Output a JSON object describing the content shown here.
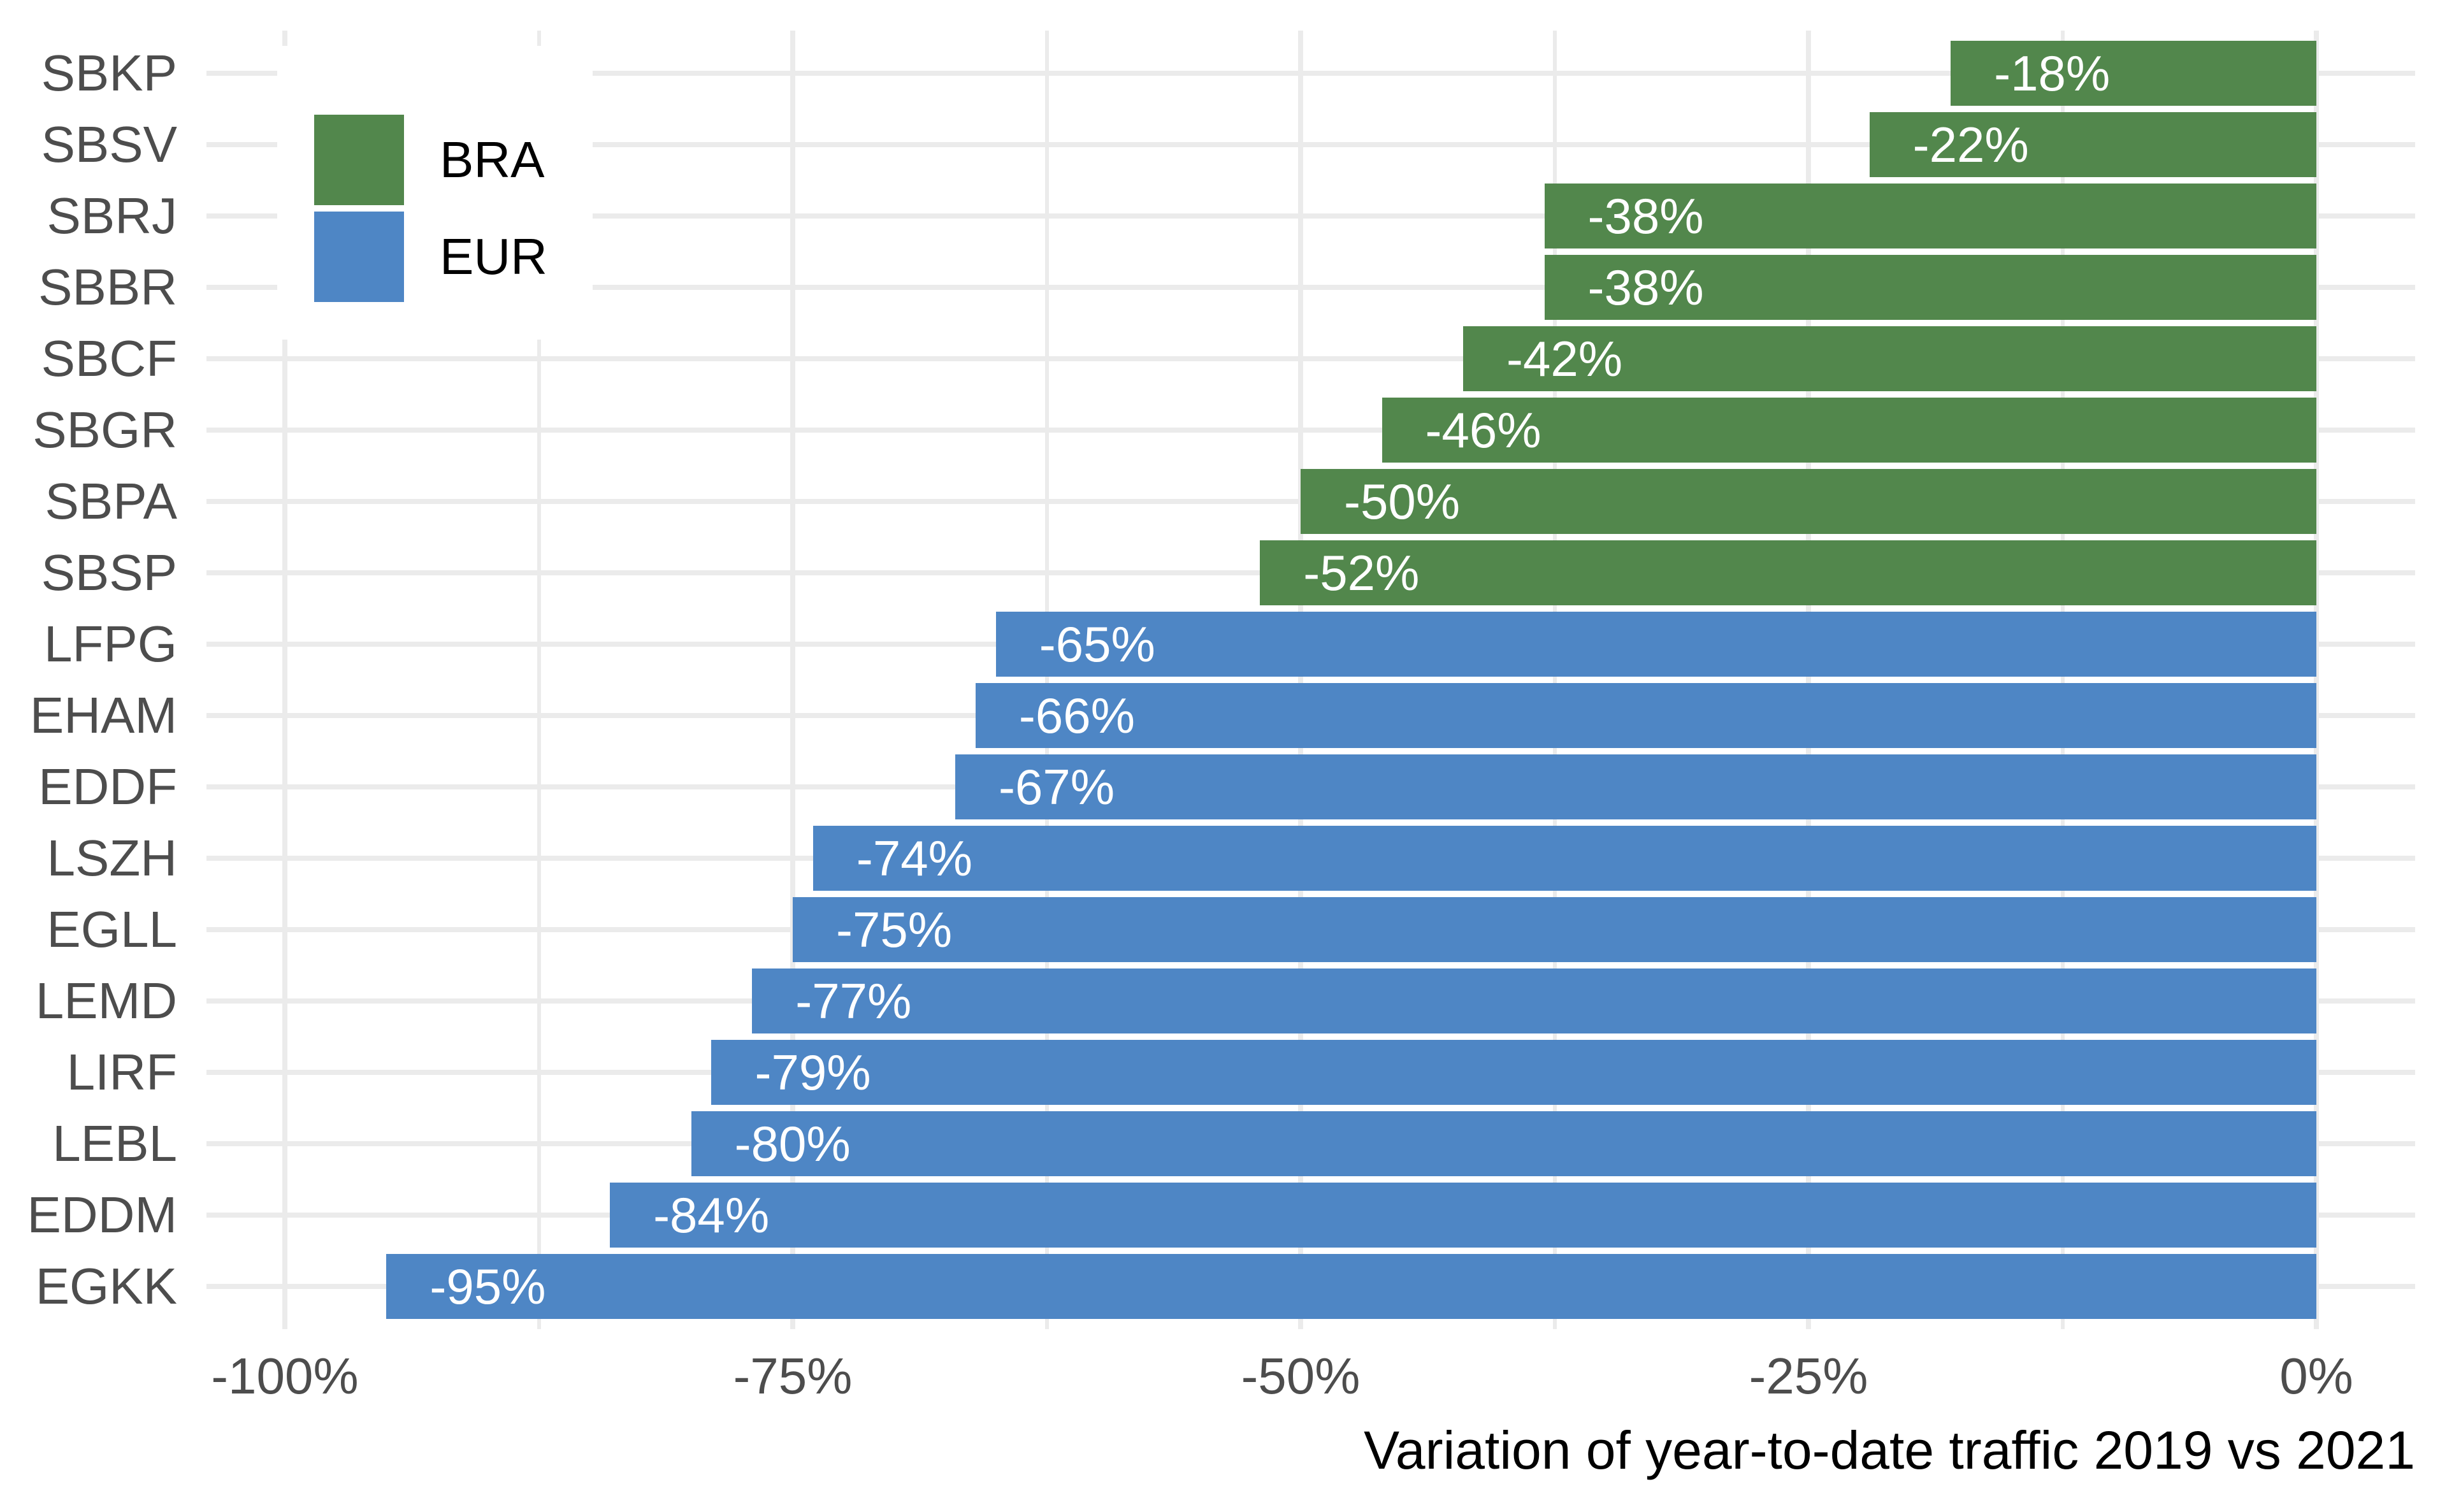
{
  "chart_data": {
    "type": "bar",
    "orientation": "horizontal",
    "title": "",
    "xlabel": "Variation of year-to-date traffic 2019 vs 2021",
    "ylabel": "",
    "x_axis": {
      "ticks": [
        {
          "label": "-100%",
          "value": -100
        },
        {
          "label": "-75%",
          "value": -75
        },
        {
          "label": "-50%",
          "value": -50
        },
        {
          "label": "-25%",
          "value": -25
        },
        {
          "label": "0%",
          "value": 0
        }
      ],
      "xlim": [
        -100,
        0
      ],
      "minor_grid": true,
      "major_grid": true
    },
    "legend": {
      "position": "inside-top-left",
      "entries": [
        {
          "label": "BRA",
          "color": "#52874C"
        },
        {
          "label": "EUR",
          "color": "#4E86C5"
        }
      ]
    },
    "bars": [
      {
        "airport": "SBKP",
        "group": "BRA",
        "value": -18,
        "label": "-18%"
      },
      {
        "airport": "SBSV",
        "group": "BRA",
        "value": -22,
        "label": "-22%"
      },
      {
        "airport": "SBRJ",
        "group": "BRA",
        "value": -38,
        "label": "-38%"
      },
      {
        "airport": "SBBR",
        "group": "BRA",
        "value": -38,
        "label": "-38%"
      },
      {
        "airport": "SBCF",
        "group": "BRA",
        "value": -42,
        "label": "-42%"
      },
      {
        "airport": "SBGR",
        "group": "BRA",
        "value": -46,
        "label": "-46%"
      },
      {
        "airport": "SBPA",
        "group": "BRA",
        "value": -50,
        "label": "-50%"
      },
      {
        "airport": "SBSP",
        "group": "BRA",
        "value": -52,
        "label": "-52%"
      },
      {
        "airport": "LFPG",
        "group": "EUR",
        "value": -65,
        "label": "-65%"
      },
      {
        "airport": "EHAM",
        "group": "EUR",
        "value": -66,
        "label": "-66%"
      },
      {
        "airport": "EDDF",
        "group": "EUR",
        "value": -67,
        "label": "-67%"
      },
      {
        "airport": "LSZH",
        "group": "EUR",
        "value": -74,
        "label": "-74%"
      },
      {
        "airport": "EGLL",
        "group": "EUR",
        "value": -75,
        "label": "-75%"
      },
      {
        "airport": "LEMD",
        "group": "EUR",
        "value": -77,
        "label": "-77%"
      },
      {
        "airport": "LIRF",
        "group": "EUR",
        "value": -79,
        "label": "-79%"
      },
      {
        "airport": "LEBL",
        "group": "EUR",
        "value": -80,
        "label": "-80%"
      },
      {
        "airport": "EDDM",
        "group": "EUR",
        "value": -84,
        "label": "-84%"
      },
      {
        "airport": "EGKK",
        "group": "EUR",
        "value": -95,
        "label": "-95%"
      }
    ]
  },
  "colors": {
    "bra_green": "#52874C",
    "eur_blue": "#4E86C5",
    "grid": "#EBEBEB",
    "axis_text": "#4D4D4D",
    "axis_title": "#000000",
    "bar_label": "#FFFFFF",
    "background": "#FFFFFF"
  }
}
